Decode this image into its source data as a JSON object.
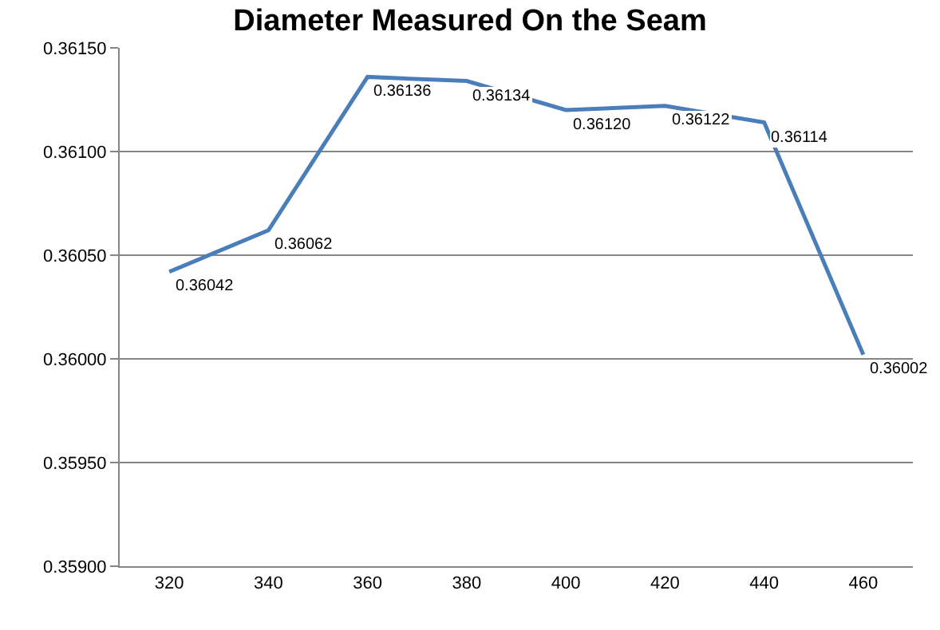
{
  "chart_data": {
    "type": "line",
    "title": "Diameter Measured On the Seam",
    "categories": [
      "320",
      "340",
      "360",
      "380",
      "400",
      "420",
      "440",
      "460"
    ],
    "series": [
      {
        "color": "#4a7ebb",
        "values": [
          0.36042,
          0.36062,
          0.36136,
          0.36134,
          0.3612,
          0.36122,
          0.36114,
          0.36002
        ],
        "value_labels": [
          "0.36042",
          "0.36062",
          "0.36136",
          "0.36134",
          "0.36120",
          "0.36122",
          "0.36114",
          "0.36002"
        ]
      }
    ],
    "ylim": [
      0.359,
      0.3615
    ],
    "yticks": [
      {
        "value": 0.359,
        "label": "0.35900"
      },
      {
        "value": 0.3595,
        "label": "0.35950"
      },
      {
        "value": 0.36,
        "label": "0.36000"
      },
      {
        "value": 0.3605,
        "label": "0.36050"
      },
      {
        "value": 0.361,
        "label": "0.36100"
      },
      {
        "value": 0.3615,
        "label": "0.36150"
      }
    ],
    "grid": "y",
    "marker": "none",
    "line_style": "solid"
  }
}
